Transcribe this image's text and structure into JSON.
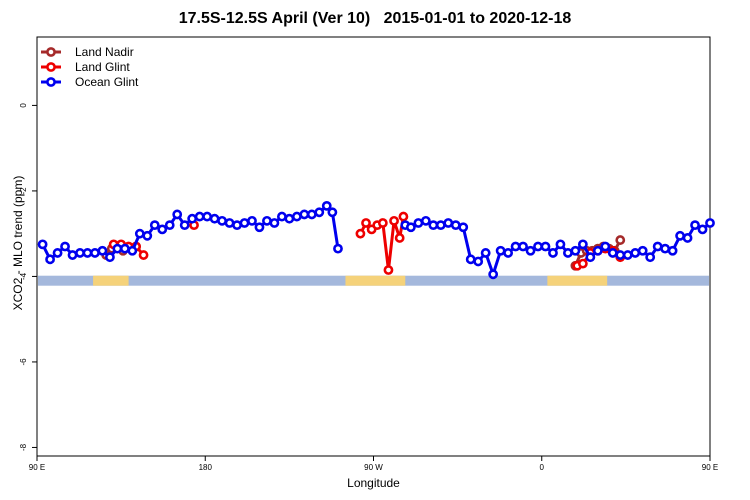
{
  "chart_data": {
    "type": "line",
    "title": "17.5S-12.5S April (Ver 10)   2015-01-01 to 2020-12-18",
    "xlabel": "Longitude",
    "ylabel": "XCO2 - MLO trend (ppm)",
    "xlim": [
      90,
      450
    ],
    "ylim": [
      -8.2,
      1.6
    ],
    "x_ticks": [
      {
        "value": 90,
        "label": "90 E"
      },
      {
        "value": 180,
        "label": "180"
      },
      {
        "value": 270,
        "label": "90 W"
      },
      {
        "value": 360,
        "label": "0"
      },
      {
        "value": 450,
        "label": "90 E"
      },
      {
        "value": 540,
        "label": "180"
      }
    ],
    "y_ticks": [
      {
        "value": 0,
        "label": "0"
      },
      {
        "value": -2,
        "label": "-2"
      },
      {
        "value": -4,
        "label": "-4"
      },
      {
        "value": -6,
        "label": "-6"
      },
      {
        "value": -8,
        "label": "-8"
      }
    ],
    "legend_position": "top-left",
    "band": {
      "y": -4.1,
      "color": "#a4b8dc",
      "land_color": "#f5d27a"
    },
    "series": [
      {
        "name": "Land Nadir",
        "color": "#a52a2a",
        "points": [
          [
            127,
            -3.5
          ],
          [
            130,
            -3.35
          ],
          [
            133,
            -3.3
          ],
          [
            136,
            -3.4
          ],
          [
            140,
            -3.35
          ],
          [
            143,
            -3.3
          ],
          [
            378,
            -3.75
          ],
          [
            381,
            -3.45
          ],
          [
            384,
            -3.4
          ],
          [
            387,
            -3.4
          ],
          [
            390,
            -3.35
          ],
          [
            393,
            -3.3
          ],
          [
            396,
            -3.35
          ],
          [
            399,
            -3.4
          ],
          [
            402,
            -3.15
          ],
          [
            477,
            -3.55
          ],
          [
            480,
            -3.3
          ],
          [
            483,
            -3.3
          ],
          [
            486,
            -3.35
          ],
          [
            489,
            -3.4
          ],
          [
            492,
            -3.35
          ]
        ]
      },
      {
        "name": "Land Glint",
        "color": "#ee0000",
        "points": [
          [
            131,
            -3.25
          ],
          [
            135,
            -3.25
          ],
          [
            139,
            -3.3
          ],
          [
            143,
            -3.3
          ],
          [
            147,
            -3.5
          ],
          [
            174,
            -2.8
          ],
          [
            263,
            -3.0
          ],
          [
            266,
            -2.75
          ],
          [
            269,
            -2.9
          ],
          [
            272,
            -2.8
          ],
          [
            275,
            -2.75
          ],
          [
            278,
            -3.85
          ],
          [
            281,
            -2.7
          ],
          [
            284,
            -3.1
          ],
          [
            286,
            -2.6
          ],
          [
            379,
            -3.75
          ],
          [
            382,
            -3.7
          ],
          [
            386,
            -3.45
          ],
          [
            390,
            -3.4
          ],
          [
            394,
            -3.35
          ],
          [
            398,
            -3.4
          ],
          [
            402,
            -3.55
          ],
          [
            479,
            -3.25
          ],
          [
            482,
            -3.25
          ],
          [
            485,
            -3.3
          ],
          [
            488,
            -3.4
          ],
          [
            491,
            -3.25
          ],
          [
            494,
            -3.5
          ]
        ]
      },
      {
        "name": "Ocean Glint",
        "color": "#0000ee",
        "points": [
          [
            93,
            -3.25
          ],
          [
            97,
            -3.6
          ],
          [
            101,
            -3.45
          ],
          [
            105,
            -3.3
          ],
          [
            109,
            -3.5
          ],
          [
            113,
            -3.45
          ],
          [
            117,
            -3.45
          ],
          [
            121,
            -3.45
          ],
          [
            125,
            -3.4
          ],
          [
            129,
            -3.55
          ],
          [
            133,
            -3.35
          ],
          [
            137,
            -3.35
          ],
          [
            141,
            -3.4
          ],
          [
            145,
            -3.0
          ],
          [
            149,
            -3.05
          ],
          [
            153,
            -2.8
          ],
          [
            157,
            -2.9
          ],
          [
            161,
            -2.8
          ],
          [
            165,
            -2.55
          ],
          [
            169,
            -2.8
          ],
          [
            173,
            -2.65
          ],
          [
            177,
            -2.6
          ],
          [
            181,
            -2.6
          ],
          [
            185,
            -2.65
          ],
          [
            189,
            -2.7
          ],
          [
            193,
            -2.75
          ],
          [
            197,
            -2.8
          ],
          [
            201,
            -2.75
          ],
          [
            205,
            -2.7
          ],
          [
            209,
            -2.85
          ],
          [
            213,
            -2.7
          ],
          [
            217,
            -2.75
          ],
          [
            221,
            -2.6
          ],
          [
            225,
            -2.65
          ],
          [
            229,
            -2.6
          ],
          [
            233,
            -2.55
          ],
          [
            237,
            -2.55
          ],
          [
            241,
            -2.5
          ],
          [
            245,
            -2.35
          ],
          [
            248,
            -2.5
          ],
          [
            251,
            -3.35
          ],
          [
            287,
            -2.8
          ],
          [
            290,
            -2.85
          ],
          [
            294,
            -2.75
          ],
          [
            298,
            -2.7
          ],
          [
            302,
            -2.8
          ],
          [
            306,
            -2.8
          ],
          [
            310,
            -2.75
          ],
          [
            314,
            -2.8
          ],
          [
            318,
            -2.85
          ],
          [
            322,
            -3.6
          ],
          [
            326,
            -3.65
          ],
          [
            330,
            -3.45
          ],
          [
            334,
            -3.95
          ],
          [
            338,
            -3.4
          ],
          [
            342,
            -3.45
          ],
          [
            346,
            -3.3
          ],
          [
            350,
            -3.3
          ],
          [
            354,
            -3.4
          ],
          [
            358,
            -3.3
          ],
          [
            362,
            -3.3
          ],
          [
            366,
            -3.45
          ],
          [
            370,
            -3.25
          ],
          [
            374,
            -3.45
          ],
          [
            378,
            -3.4
          ],
          [
            382,
            -3.25
          ],
          [
            386,
            -3.55
          ],
          [
            390,
            -3.4
          ],
          [
            394,
            -3.3
          ],
          [
            398,
            -3.45
          ],
          [
            402,
            -3.5
          ],
          [
            406,
            -3.5
          ],
          [
            410,
            -3.45
          ],
          [
            414,
            -3.4
          ],
          [
            418,
            -3.55
          ],
          [
            422,
            -3.3
          ],
          [
            426,
            -3.35
          ],
          [
            430,
            -3.4
          ],
          [
            434,
            -3.05
          ],
          [
            438,
            -3.1
          ],
          [
            442,
            -2.8
          ],
          [
            446,
            -2.9
          ],
          [
            450,
            -2.75
          ]
        ]
      }
    ]
  }
}
